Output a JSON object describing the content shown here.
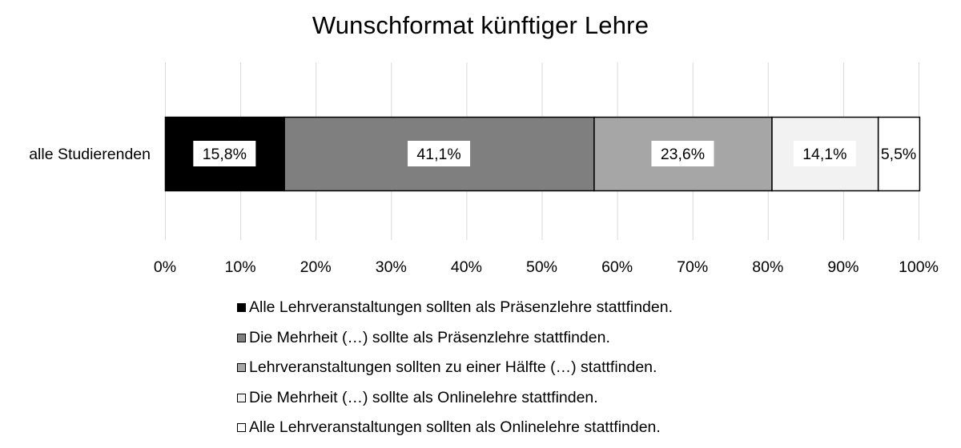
{
  "chart_data": {
    "type": "bar",
    "orientation": "horizontal",
    "stacked": true,
    "title": "Wunschformat künftiger Lehre",
    "categories": [
      "alle Studierenden"
    ],
    "series": [
      {
        "name": "Alle Lehrveranstaltungen sollten als Präsenzlehre stattfinden.",
        "values": [
          15.8
        ],
        "label": "15,8%",
        "color": "#000000"
      },
      {
        "name": "Die Mehrheit (…) sollte als Präsenzlehre stattfinden.",
        "values": [
          41.1
        ],
        "label": "41,1%",
        "color": "#7f7f7f"
      },
      {
        "name": "Lehrveranstaltungen sollten zu einer Hälfte (…) stattfinden.",
        "values": [
          23.6
        ],
        "label": "23,6%",
        "color": "#a6a6a6"
      },
      {
        "name": "Die Mehrheit (…) sollte als Onlinelehre stattfinden.",
        "values": [
          14.1
        ],
        "label": "14,1%",
        "color": "#f2f2f2"
      },
      {
        "name": "Alle Lehrveranstaltungen sollten als Onlinelehre stattfinden.",
        "values": [
          5.5
        ],
        "label": "5,5%",
        "color": "#ffffff"
      }
    ],
    "xlim": [
      0,
      100
    ],
    "xticks": [
      0,
      10,
      20,
      30,
      40,
      50,
      60,
      70,
      80,
      90,
      100
    ],
    "xtick_labels": [
      "0%",
      "10%",
      "20%",
      "30%",
      "40%",
      "50%",
      "60%",
      "70%",
      "80%",
      "90%",
      "100%"
    ],
    "grid": "vertical",
    "legend_position": "bottom"
  }
}
